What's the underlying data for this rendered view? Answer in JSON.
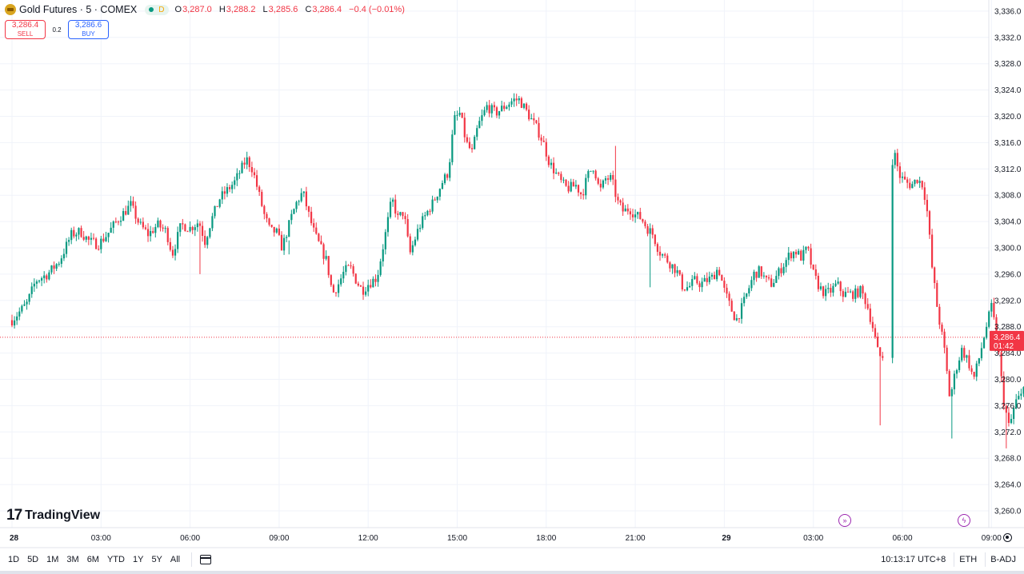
{
  "header": {
    "symbol_title": "Gold Futures · 5 · COMEX",
    "session_badge": "D",
    "ohlc": {
      "o_label": "O",
      "o_value": "3,287.0",
      "h_label": "H",
      "h_value": "3,288.2",
      "l_label": "L",
      "l_value": "3,285.6",
      "c_label": "C",
      "c_value": "3,286.4",
      "change": "−0.4 (−0.01%)"
    }
  },
  "trade": {
    "sell_price": "3,286.4",
    "sell_label": "SELL",
    "spread": "0.2",
    "buy_price": "3,286.6",
    "buy_label": "BUY"
  },
  "logo_text": "TradingView",
  "colors": {
    "up": "#089981",
    "down": "#f23645",
    "grid": "#f0f3fa",
    "axis_text": "#131722",
    "price_line": "#f23645",
    "accent_event": "#9c27b0"
  },
  "icons": [
    "gold-symbol-icon",
    "status-dot-icon",
    "tradingview-logo-icon",
    "dividend-event-icon",
    "flash-event-icon",
    "calendar-range-icon",
    "settings-gear-icon"
  ],
  "chart_data": {
    "type": "candlestick",
    "symbol": "Gold Futures",
    "interval": "5",
    "exchange": "COMEX",
    "ylim": [
      3258,
      3338
    ],
    "y_ticks": [
      "3,260.0",
      "3,264.0",
      "3,268.0",
      "3,272.0",
      "3,276.0",
      "3,280.0",
      "3,284.0",
      "3,288.0",
      "3,292.0",
      "3,296.0",
      "3,300.0",
      "3,304.0",
      "3,308.0",
      "3,312.0",
      "3,316.0",
      "3,320.0",
      "3,324.0",
      "3,328.0",
      "3,332.0",
      "3,336.0"
    ],
    "x_ticks": [
      {
        "label": "28",
        "bold": true,
        "t": 0
      },
      {
        "label": "03:00",
        "t": 3
      },
      {
        "label": "06:00",
        "t": 6
      },
      {
        "label": "09:00",
        "t": 9
      },
      {
        "label": "12:00",
        "t": 12
      },
      {
        "label": "15:00",
        "t": 15
      },
      {
        "label": "18:00",
        "t": 18
      },
      {
        "label": "21:00",
        "t": 21
      },
      {
        "label": "29",
        "bold": true,
        "t": 24
      },
      {
        "label": "03:00",
        "t": 27
      },
      {
        "label": "06:00",
        "t": 30
      },
      {
        "label": "09:00",
        "t": 33
      }
    ],
    "x_range_hours": [
      0,
      34.55
    ],
    "last_price": "3,286.4",
    "last_price_value": 3286.4,
    "countdown": "01:42",
    "close_path": [
      [
        0.0,
        3289.0
      ],
      [
        0.5,
        3291.5
      ],
      [
        0.8,
        3295.0
      ],
      [
        1.2,
        3296.0
      ],
      [
        1.6,
        3298.0
      ],
      [
        2.0,
        3302.0
      ],
      [
        2.3,
        3302.5
      ],
      [
        2.6,
        3301.0
      ],
      [
        2.9,
        3300.5
      ],
      [
        3.2,
        3302.0
      ],
      [
        3.6,
        3304.5
      ],
      [
        4.0,
        3306.5
      ],
      [
        4.3,
        3303.5
      ],
      [
        4.6,
        3302.0
      ],
      [
        4.9,
        3303.5
      ],
      [
        5.2,
        3302.5
      ],
      [
        5.4,
        3299.0
      ],
      [
        5.7,
        3303.5
      ],
      [
        6.0,
        3303.0
      ],
      [
        6.3,
        3304.0
      ],
      [
        6.5,
        3301.0
      ],
      [
        6.7,
        3304.0
      ],
      [
        7.0,
        3307.5
      ],
      [
        7.5,
        3310.0
      ],
      [
        7.9,
        3313.5
      ],
      [
        8.1,
        3312.0
      ],
      [
        8.3,
        3308.5
      ],
      [
        8.5,
        3305.0
      ],
      [
        8.7,
        3302.5
      ],
      [
        8.9,
        3302.5
      ],
      [
        9.1,
        3300.0
      ],
      [
        9.4,
        3304.5
      ],
      [
        9.6,
        3307.0
      ],
      [
        9.8,
        3308.5
      ],
      [
        10.0,
        3305.0
      ],
      [
        10.2,
        3302.0
      ],
      [
        10.4,
        3300.0
      ],
      [
        10.6,
        3298.0
      ],
      [
        10.8,
        3293.0
      ],
      [
        11.0,
        3294.5
      ],
      [
        11.2,
        3296.5
      ],
      [
        11.4,
        3297.0
      ],
      [
        11.6,
        3295.0
      ],
      [
        11.8,
        3293.5
      ],
      [
        12.0,
        3294.5
      ],
      [
        12.3,
        3295.5
      ],
      [
        12.6,
        3302.5
      ],
      [
        12.8,
        3307.5
      ],
      [
        13.0,
        3304.5
      ],
      [
        13.2,
        3305.5
      ],
      [
        13.4,
        3299.0
      ],
      [
        13.7,
        3303.0
      ],
      [
        14.0,
        3305.5
      ],
      [
        14.2,
        3307.0
      ],
      [
        14.5,
        3310.0
      ],
      [
        14.7,
        3311.5
      ],
      [
        14.9,
        3319.5
      ],
      [
        15.1,
        3320.5
      ],
      [
        15.3,
        3316.0
      ],
      [
        15.5,
        3314.5
      ],
      [
        15.7,
        3318.5
      ],
      [
        16.0,
        3321.5
      ],
      [
        16.3,
        3320.5
      ],
      [
        16.6,
        3321.5
      ],
      [
        16.9,
        3322.5
      ],
      [
        17.1,
        3322.5
      ],
      [
        17.3,
        3321.0
      ],
      [
        17.5,
        3319.5
      ],
      [
        17.7,
        3318.0
      ],
      [
        17.9,
        3316.0
      ],
      [
        18.1,
        3313.0
      ],
      [
        18.3,
        3311.5
      ],
      [
        18.5,
        3310.0
      ],
      [
        18.7,
        3309.0
      ],
      [
        19.0,
        3309.5
      ],
      [
        19.2,
        3308.0
      ],
      [
        19.4,
        3311.0
      ],
      [
        19.6,
        3312.5
      ],
      [
        19.8,
        3308.5
      ],
      [
        20.0,
        3310.5
      ],
      [
        20.2,
        3310.5
      ],
      [
        20.4,
        3307.0
      ],
      [
        20.6,
        3305.5
      ],
      [
        20.8,
        3306.0
      ],
      [
        21.0,
        3305.0
      ],
      [
        21.2,
        3304.5
      ],
      [
        21.4,
        3303.0
      ],
      [
        21.6,
        3302.0
      ],
      [
        21.8,
        3299.5
      ],
      [
        22.0,
        3298.5
      ],
      [
        22.2,
        3297.5
      ],
      [
        22.4,
        3296.5
      ],
      [
        22.6,
        3294.0
      ],
      [
        22.8,
        3294.0
      ],
      [
        23.0,
        3295.0
      ],
      [
        23.2,
        3294.5
      ],
      [
        23.4,
        3295.0
      ],
      [
        23.6,
        3295.5
      ],
      [
        23.8,
        3297.0
      ],
      [
        24.0,
        3293.5
      ],
      [
        24.2,
        3291.0
      ],
      [
        24.4,
        3289.0
      ],
      [
        24.6,
        3291.0
      ],
      [
        24.8,
        3293.5
      ],
      [
        25.0,
        3296.0
      ],
      [
        25.2,
        3296.5
      ],
      [
        25.4,
        3295.0
      ],
      [
        25.6,
        3294.5
      ],
      [
        25.8,
        3296.0
      ],
      [
        26.0,
        3297.5
      ],
      [
        26.2,
        3299.0
      ],
      [
        26.4,
        3299.5
      ],
      [
        26.6,
        3298.5
      ],
      [
        26.8,
        3300.0
      ],
      [
        27.0,
        3296.0
      ],
      [
        27.2,
        3294.0
      ],
      [
        27.4,
        3293.0
      ],
      [
        27.6,
        3293.5
      ],
      [
        27.8,
        3294.5
      ],
      [
        28.0,
        3293.0
      ],
      [
        28.2,
        3293.0
      ],
      [
        28.4,
        3293.0
      ],
      [
        28.6,
        3293.5
      ],
      [
        28.8,
        3291.5
      ],
      [
        29.0,
        3288.0
      ],
      [
        29.2,
        3283.5
      ],
      [
        29.35,
        3282.5
      ],
      [
        29.55,
        3312.5
      ],
      [
        29.75,
        3314.0
      ],
      [
        29.9,
        3311.0
      ],
      [
        30.1,
        3310.0
      ],
      [
        30.3,
        3309.5
      ],
      [
        30.5,
        3310.5
      ],
      [
        30.7,
        3309.5
      ],
      [
        30.85,
        3305.0
      ],
      [
        31.0,
        3297.0
      ],
      [
        31.2,
        3290.0
      ],
      [
        31.4,
        3285.0
      ],
      [
        31.6,
        3277.0
      ],
      [
        31.8,
        3281.5
      ],
      [
        32.0,
        3284.5
      ],
      [
        32.2,
        3283.0
      ],
      [
        32.4,
        3280.0
      ],
      [
        32.6,
        3283.5
      ],
      [
        32.8,
        3287.5
      ],
      [
        33.0,
        3291.0
      ],
      [
        33.2,
        3286.0
      ],
      [
        33.4,
        3277.0
      ],
      [
        33.6,
        3272.5
      ],
      [
        33.8,
        3276.5
      ],
      [
        34.0,
        3277.5
      ],
      [
        34.2,
        3282.5
      ],
      [
        34.4,
        3286.5
      ],
      [
        34.55,
        3286.4
      ]
    ]
  },
  "bottom_bar": {
    "ranges": [
      "1D",
      "5D",
      "1M",
      "3M",
      "6M",
      "YTD",
      "1Y",
      "5Y",
      "All"
    ],
    "clock": "10:13:17 UTC+8",
    "session": "ETH",
    "adjust": "B-ADJ"
  }
}
